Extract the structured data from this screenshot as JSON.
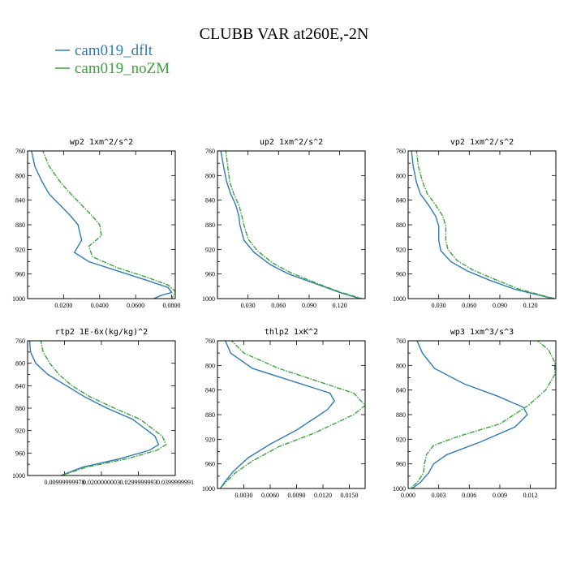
{
  "title": "CLUBB VAR at260E,-2N",
  "legend": [
    {
      "label": "cam019_dflt",
      "color": "#2f7bb5"
    },
    {
      "label": "cam019_noZM",
      "color": "#3ca33c"
    }
  ],
  "chart_data": [
    {
      "type": "line",
      "title": "wp2  1xm^2/s^2",
      "xlim": [
        0,
        0.082
      ],
      "ylim": [
        760,
        1000
      ],
      "y_inverted": true,
      "xticks": [
        0.02,
        0.04,
        0.06,
        0.08
      ],
      "xtick_labels": [
        "0.0200",
        "0.0400",
        "0.0600",
        "0.0800"
      ],
      "yticks": [
        760,
        800,
        840,
        880,
        920,
        960,
        1000
      ],
      "ytick_labels": [
        "760",
        "800",
        "840",
        "880",
        "920",
        "960",
        "1000"
      ],
      "series": [
        {
          "name": "cam019_dflt",
          "color": "#2f7bb5",
          "x": [
            0.002,
            0.004,
            0.008,
            0.012,
            0.018,
            0.024,
            0.028,
            0.03,
            0.026,
            0.034,
            0.05,
            0.066,
            0.078,
            0.08,
            0.074,
            0.07
          ],
          "y": [
            757,
            785,
            810,
            830,
            848,
            866,
            880,
            905,
            925,
            940,
            955,
            970,
            982,
            990,
            995,
            1000
          ]
        },
        {
          "name": "cam019_noZM",
          "color": "#3ca33c",
          "x": [
            0.008,
            0.012,
            0.018,
            0.024,
            0.03,
            0.036,
            0.04,
            0.041,
            0.034,
            0.036,
            0.05,
            0.066,
            0.078,
            0.082,
            0.081,
            0.08
          ],
          "y": [
            757,
            785,
            810,
            830,
            848,
            866,
            880,
            898,
            915,
            932,
            950,
            965,
            978,
            988,
            995,
            1000
          ]
        }
      ]
    },
    {
      "type": "line",
      "title": "up2  1xm^2/s^2",
      "xlim": [
        0,
        0.145
      ],
      "ylim": [
        760,
        1000
      ],
      "y_inverted": true,
      "xticks": [
        0.03,
        0.06,
        0.09,
        0.12
      ],
      "xtick_labels": [
        "0.030",
        "0.060",
        "0.090",
        "0.120"
      ],
      "yticks": [
        760,
        800,
        840,
        880,
        920,
        960,
        1000
      ],
      "ytick_labels": [
        "760",
        "800",
        "840",
        "880",
        "920",
        "960",
        "1000"
      ],
      "series": [
        {
          "name": "cam019_dflt",
          "color": "#2f7bb5",
          "x": [
            0.003,
            0.006,
            0.009,
            0.013,
            0.018,
            0.021,
            0.022,
            0.026,
            0.036,
            0.052,
            0.07,
            0.095,
            0.12,
            0.14
          ],
          "y": [
            757,
            785,
            810,
            830,
            848,
            866,
            880,
            905,
            925,
            945,
            960,
            975,
            990,
            1000
          ]
        },
        {
          "name": "cam019_noZM",
          "color": "#3ca33c",
          "x": [
            0.008,
            0.01,
            0.012,
            0.016,
            0.021,
            0.024,
            0.026,
            0.03,
            0.039,
            0.054,
            0.072,
            0.096,
            0.12,
            0.142
          ],
          "y": [
            757,
            785,
            810,
            830,
            848,
            866,
            880,
            903,
            922,
            942,
            958,
            974,
            989,
            1000
          ]
        }
      ]
    },
    {
      "type": "line",
      "title": "vp2  1xm^2/s^2",
      "xlim": [
        0,
        0.145
      ],
      "ylim": [
        760,
        1000
      ],
      "y_inverted": true,
      "xticks": [
        0.03,
        0.06,
        0.09,
        0.12
      ],
      "xtick_labels": [
        "0.030",
        "0.060",
        "0.090",
        "0.120"
      ],
      "yticks": [
        760,
        800,
        840,
        880,
        920,
        960,
        1000
      ],
      "ytick_labels": [
        "760",
        "800",
        "840",
        "880",
        "920",
        "960",
        "1000"
      ],
      "series": [
        {
          "name": "cam019_dflt",
          "color": "#2f7bb5",
          "x": [
            0.003,
            0.005,
            0.008,
            0.012,
            0.02,
            0.027,
            0.03,
            0.03,
            0.032,
            0.042,
            0.058,
            0.08,
            0.105,
            0.13,
            0.142
          ],
          "y": [
            757,
            785,
            810,
            830,
            848,
            866,
            882,
            905,
            922,
            940,
            955,
            970,
            985,
            995,
            1000
          ]
        },
        {
          "name": "cam019_noZM",
          "color": "#3ca33c",
          "x": [
            0.008,
            0.01,
            0.014,
            0.019,
            0.027,
            0.034,
            0.037,
            0.037,
            0.039,
            0.048,
            0.063,
            0.084,
            0.108,
            0.132,
            0.144
          ],
          "y": [
            757,
            785,
            810,
            830,
            848,
            866,
            882,
            905,
            920,
            938,
            953,
            968,
            984,
            995,
            1000
          ]
        }
      ]
    },
    {
      "type": "line",
      "title": "rtp2  1E-6x(kg/kg)^2",
      "xlim": [
        0,
        0.04
      ],
      "ylim": [
        760,
        1000
      ],
      "y_inverted": true,
      "xticks": [
        0.01,
        0.02,
        0.03,
        0.04
      ],
      "xtick_labels": [
        "0.00999999978",
        "0.0200000003",
        "0.0299999993",
        "0.0399999991"
      ],
      "yticks": [
        760,
        800,
        840,
        880,
        920,
        960,
        1000
      ],
      "ytick_labels": [
        "760",
        "800",
        "840",
        "880",
        "920",
        "960",
        "1000"
      ],
      "series": [
        {
          "name": "cam019_dflt",
          "color": "#2f7bb5",
          "x": [
            0.0005,
            0.0008,
            0.0022,
            0.0055,
            0.0105,
            0.0155,
            0.0215,
            0.0285,
            0.0345,
            0.0355,
            0.033,
            0.025,
            0.015,
            0.011,
            0.009
          ],
          "y": [
            757,
            780,
            800,
            820,
            840,
            860,
            880,
            900,
            930,
            945,
            955,
            970,
            985,
            995,
            1000
          ]
        },
        {
          "name": "cam019_noZM",
          "color": "#3ca33c",
          "x": [
            0.0035,
            0.0042,
            0.006,
            0.0085,
            0.012,
            0.017,
            0.0235,
            0.0305,
            0.0365,
            0.0375,
            0.035,
            0.027,
            0.016,
            0.0115,
            0.009
          ],
          "y": [
            757,
            780,
            800,
            820,
            840,
            860,
            880,
            900,
            930,
            945,
            955,
            970,
            985,
            995,
            1000
          ]
        }
      ]
    },
    {
      "type": "line",
      "title": "thlp2  1xK^2",
      "xlim": [
        0,
        0.0168
      ],
      "ylim": [
        760,
        1000
      ],
      "y_inverted": true,
      "xticks": [
        0.003,
        0.006,
        0.009,
        0.012,
        0.015
      ],
      "xtick_labels": [
        "0.0030",
        "0.0060",
        "0.0090",
        "0.0120",
        "0.0150"
      ],
      "yticks": [
        760,
        800,
        840,
        880,
        920,
        960,
        1000
      ],
      "ytick_labels": [
        "760",
        "800",
        "840",
        "880",
        "920",
        "960",
        "1000"
      ],
      "series": [
        {
          "name": "cam019_dflt",
          "color": "#2f7bb5",
          "x": [
            0.0008,
            0.0015,
            0.004,
            0.0128,
            0.0133,
            0.0125,
            0.009,
            0.006,
            0.0035,
            0.0018,
            0.0008,
            0.0003
          ],
          "y": [
            757,
            780,
            805,
            845,
            858,
            872,
            905,
            928,
            950,
            972,
            990,
            1000
          ]
        },
        {
          "name": "cam019_noZM",
          "color": "#3ca33c",
          "x": [
            0.0014,
            0.003,
            0.007,
            0.0155,
            0.0168,
            0.0155,
            0.011,
            0.007,
            0.004,
            0.002,
            0.0008,
            0.0003
          ],
          "y": [
            757,
            780,
            805,
            845,
            865,
            880,
            910,
            932,
            955,
            975,
            992,
            1000
          ]
        }
      ]
    },
    {
      "type": "line",
      "title": "wp3  1xm^3/s^3",
      "xlim": [
        0,
        0.0145
      ],
      "ylim": [
        760,
        1000
      ],
      "y_inverted": true,
      "xticks": [
        0.0,
        0.003,
        0.006,
        0.009,
        0.012
      ],
      "xtick_labels": [
        "0.000",
        "0.003",
        "0.006",
        "0.009",
        "0.012"
      ],
      "yticks": [
        760,
        800,
        840,
        880,
        920,
        960,
        1000
      ],
      "ytick_labels": [
        "760",
        "800",
        "840",
        "880",
        "920",
        "960",
        "1000"
      ],
      "series": [
        {
          "name": "cam019_dflt",
          "color": "#2f7bb5",
          "x": [
            0.0008,
            0.0014,
            0.0026,
            0.0055,
            0.0088,
            0.0113,
            0.0117,
            0.0105,
            0.007,
            0.0038,
            0.0025,
            0.002,
            0.0012,
            0.0004
          ],
          "y": [
            757,
            780,
            805,
            830,
            850,
            868,
            880,
            900,
            925,
            945,
            960,
            975,
            990,
            1000
          ]
        },
        {
          "name": "cam019_noZM",
          "color": "#3ca33c",
          "x": [
            0.0125,
            0.0138,
            0.0144,
            0.0144,
            0.0135,
            0.0118,
            0.009,
            0.005,
            0.0025,
            0.0018,
            0.0016,
            0.0015,
            0.0009,
            0.0002
          ],
          "y": [
            757,
            775,
            795,
            815,
            840,
            865,
            895,
            915,
            930,
            945,
            960,
            975,
            990,
            1000
          ]
        }
      ]
    }
  ]
}
